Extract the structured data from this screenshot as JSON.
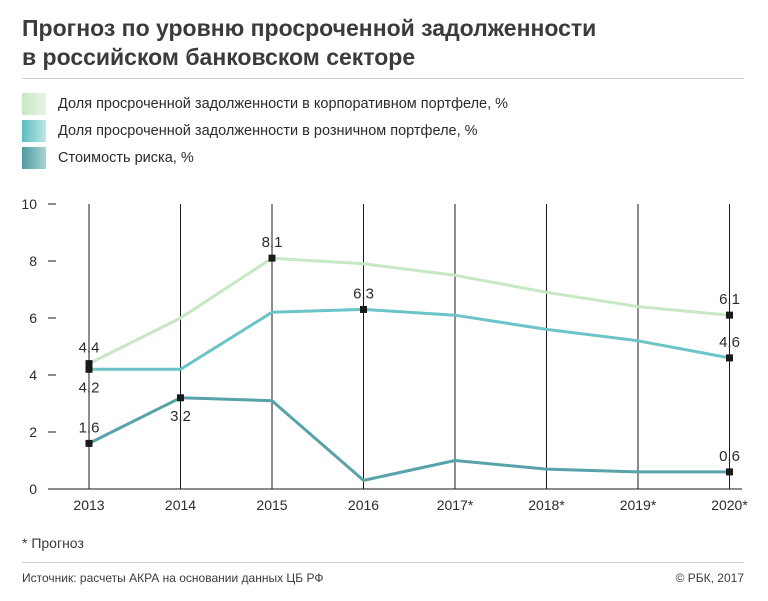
{
  "title": {
    "line1": "Прогноз по уровню просроченной задолженности",
    "line2": "в российском банковском секторе"
  },
  "legend": [
    {
      "label": "Доля просроченной задолженности в корпоративном портфеле, %",
      "color": "#c6e8c4"
    },
    {
      "label": "Доля просроченной задолженности в розничном портфеле, %",
      "color": "#6cc4c8"
    },
    {
      "label": "Стоимость риска, %",
      "color": "#57a3a9"
    }
  ],
  "footnote": "* Прогноз",
  "source": "Источник:  расчеты АКРА на основании данных ЦБ РФ",
  "copyright": "© РБК, 2017",
  "chart_data": {
    "type": "line",
    "categories": [
      "2013",
      "2014",
      "2015",
      "2016",
      "2017*",
      "2018*",
      "2019*",
      "2020*"
    ],
    "ylim": [
      0,
      10
    ],
    "yticks": [
      "0",
      "2",
      "4",
      "6",
      "8",
      "10"
    ],
    "series": [
      {
        "name": "Доля просроченной задолженности в корпоративном портфеле, %",
        "color": "#c6e8c4",
        "values": [
          4.4,
          6.0,
          8.1,
          7.9,
          7.5,
          6.9,
          6.4,
          6.1
        ],
        "labels": [
          {
            "index": 0,
            "text": "4,4",
            "pos": "above"
          },
          {
            "index": 2,
            "text": "8,1",
            "pos": "above"
          },
          {
            "index": 7,
            "text": "6,1",
            "pos": "above"
          }
        ]
      },
      {
        "name": "Доля просроченной задолженности в розничном портфеле, %",
        "color": "#6cc4c8",
        "values": [
          4.2,
          4.2,
          6.2,
          6.3,
          6.1,
          5.6,
          5.2,
          4.6
        ],
        "labels": [
          {
            "index": 0,
            "text": "4,2",
            "pos": "below"
          },
          {
            "index": 3,
            "text": "6,3",
            "pos": "above"
          },
          {
            "index": 7,
            "text": "4,6",
            "pos": "above"
          }
        ]
      },
      {
        "name": "Стоимость риска, %",
        "color": "#57a3a9",
        "values": [
          1.6,
          3.2,
          3.1,
          0.3,
          1.0,
          0.7,
          0.6,
          0.6
        ],
        "labels": [
          {
            "index": 0,
            "text": "1,6",
            "pos": "above"
          },
          {
            "index": 1,
            "text": "3,2",
            "pos": "below"
          },
          {
            "index": 7,
            "text": "0,6",
            "pos": "above"
          }
        ]
      }
    ]
  }
}
